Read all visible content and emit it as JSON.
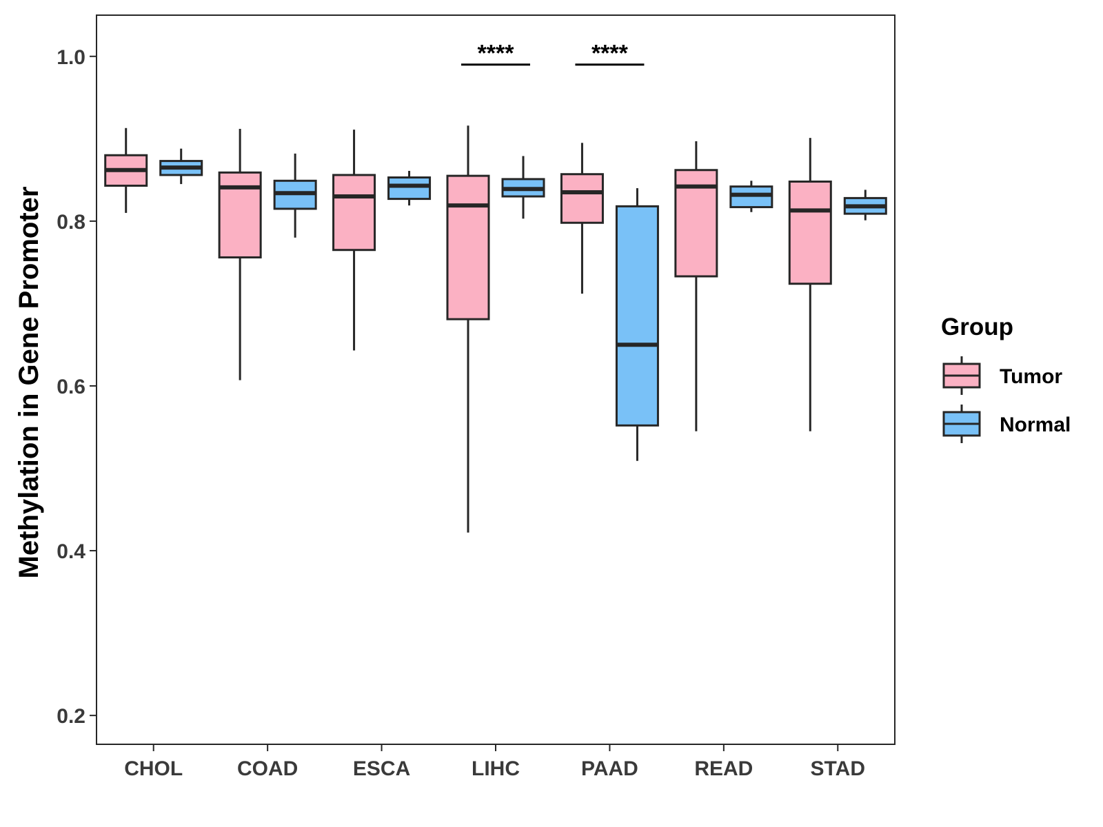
{
  "chart_data": {
    "type": "boxplot",
    "ylabel": "Methylation in Gene Promoter",
    "xlabel": "",
    "ylim": [
      0.165,
      1.05
    ],
    "yticks": [
      0.2,
      0.4,
      0.6,
      0.8,
      1.0
    ],
    "ytick_labels": [
      "0.2",
      "0.4",
      "0.6",
      "0.8",
      "1.0"
    ],
    "categories": [
      "CHOL",
      "COAD",
      "ESCA",
      "LIHC",
      "PAAD",
      "READ",
      "STAD"
    ],
    "legend": {
      "title": "Group",
      "position": "right",
      "items": [
        {
          "name": "Tumor",
          "color": "#FBB1C3"
        },
        {
          "name": "Normal",
          "color": "#79C1F7"
        }
      ]
    },
    "series": [
      {
        "name": "Tumor",
        "color": "#FBB1C3",
        "boxes": [
          {
            "category": "CHOL",
            "min": 0.81,
            "q1": 0.843,
            "median": 0.862,
            "q3": 0.88,
            "max": 0.913
          },
          {
            "category": "COAD",
            "min": 0.607,
            "q1": 0.756,
            "median": 0.841,
            "q3": 0.859,
            "max": 0.912
          },
          {
            "category": "ESCA",
            "min": 0.643,
            "q1": 0.765,
            "median": 0.83,
            "q3": 0.856,
            "max": 0.911
          },
          {
            "category": "LIHC",
            "min": 0.422,
            "q1": 0.681,
            "median": 0.819,
            "q3": 0.855,
            "max": 0.916
          },
          {
            "category": "PAAD",
            "min": 0.712,
            "q1": 0.798,
            "median": 0.835,
            "q3": 0.857,
            "max": 0.895
          },
          {
            "category": "READ",
            "min": 0.545,
            "q1": 0.733,
            "median": 0.842,
            "q3": 0.862,
            "max": 0.897
          },
          {
            "category": "STAD",
            "min": 0.545,
            "q1": 0.724,
            "median": 0.813,
            "q3": 0.848,
            "max": 0.901
          }
        ]
      },
      {
        "name": "Normal",
        "color": "#79C1F7",
        "boxes": [
          {
            "category": "CHOL",
            "min": 0.845,
            "q1": 0.856,
            "median": 0.865,
            "q3": 0.873,
            "max": 0.888
          },
          {
            "category": "COAD",
            "min": 0.78,
            "q1": 0.815,
            "median": 0.834,
            "q3": 0.849,
            "max": 0.882
          },
          {
            "category": "ESCA",
            "min": 0.819,
            "q1": 0.827,
            "median": 0.843,
            "q3": 0.853,
            "max": 0.861
          },
          {
            "category": "LIHC",
            "min": 0.803,
            "q1": 0.83,
            "median": 0.839,
            "q3": 0.851,
            "max": 0.879
          },
          {
            "category": "PAAD",
            "min": 0.509,
            "q1": 0.552,
            "median": 0.65,
            "q3": 0.818,
            "max": 0.84
          },
          {
            "category": "READ",
            "min": 0.811,
            "q1": 0.817,
            "median": 0.832,
            "q3": 0.842,
            "max": 0.849
          },
          {
            "category": "STAD",
            "min": 0.801,
            "q1": 0.809,
            "median": 0.818,
            "q3": 0.828,
            "max": 0.838
          }
        ]
      }
    ],
    "annotations": [
      {
        "category": "LIHC",
        "label": "****",
        "y": 0.99
      },
      {
        "category": "PAAD",
        "label": "****",
        "y": 0.99
      }
    ]
  },
  "colors": {
    "box_stroke": "#262626",
    "axis": "#262626",
    "tick_label": "#3a3a3a",
    "background": "#ffffff"
  }
}
